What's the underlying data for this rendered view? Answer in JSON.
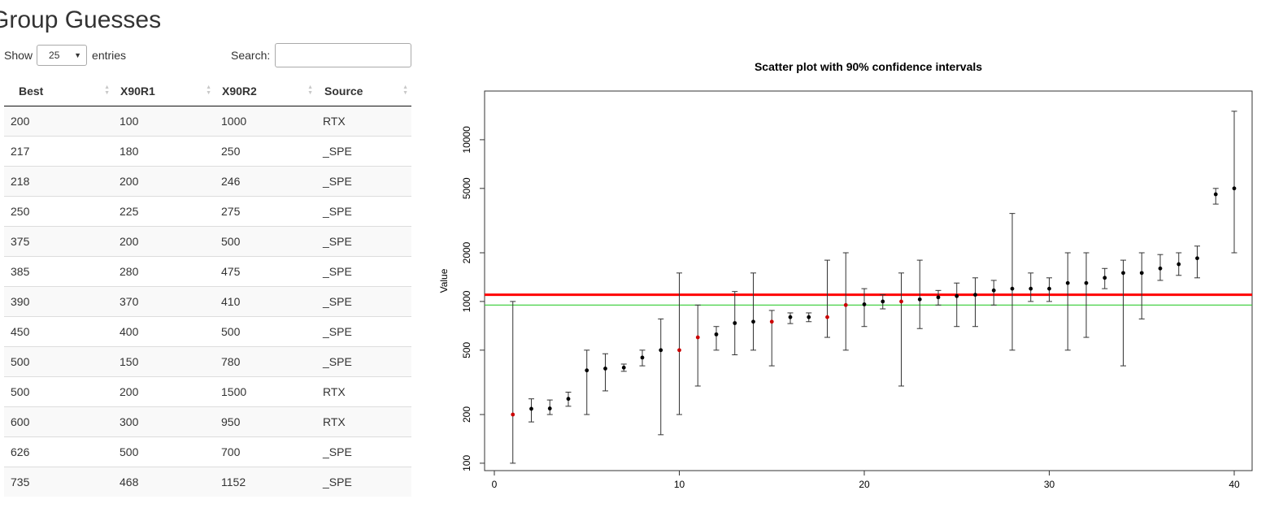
{
  "page": {
    "title": "Group Guesses"
  },
  "table_controls": {
    "show_label": "Show",
    "page_length": "25",
    "entries_label": "entries",
    "search_label": "Search:",
    "search_value": ""
  },
  "table": {
    "columns": [
      "Best",
      "X90R1",
      "X90R2",
      "Source"
    ],
    "rows": [
      [
        "200",
        "100",
        "1000",
        "RTX"
      ],
      [
        "217",
        "180",
        "250",
        "_SPE"
      ],
      [
        "218",
        "200",
        "246",
        "_SPE"
      ],
      [
        "250",
        "225",
        "275",
        "_SPE"
      ],
      [
        "375",
        "200",
        "500",
        "_SPE"
      ],
      [
        "385",
        "280",
        "475",
        "_SPE"
      ],
      [
        "390",
        "370",
        "410",
        "_SPE"
      ],
      [
        "450",
        "400",
        "500",
        "_SPE"
      ],
      [
        "500",
        "150",
        "780",
        "_SPE"
      ],
      [
        "500",
        "200",
        "1500",
        "RTX"
      ],
      [
        "600",
        "300",
        "950",
        "RTX"
      ],
      [
        "626",
        "500",
        "700",
        "_SPE"
      ],
      [
        "735",
        "468",
        "1152",
        "_SPE"
      ]
    ]
  },
  "chart_data": {
    "type": "scatter",
    "title": "Scatter plot with 90% confidence intervals",
    "xlabel": "",
    "ylabel": "Value",
    "y_scale": "log",
    "xlim": [
      0,
      40
    ],
    "ylim": [
      90,
      20000
    ],
    "x_ticks": [
      0,
      10,
      20,
      30,
      40
    ],
    "y_ticks": [
      100,
      200,
      500,
      1000,
      2000,
      5000,
      10000
    ],
    "grid": false,
    "colors": {
      "point_default": "#000000",
      "point_highlight": "#cc0000",
      "hline_red": "#ff0000",
      "hline_green": "#33cc33",
      "errorbar": "#333333"
    },
    "hlines": [
      {
        "y": 1100,
        "color": "red"
      },
      {
        "y": 950,
        "color": "green"
      }
    ],
    "points": [
      {
        "x": 1,
        "y": 200,
        "lo": 100,
        "hi": 1000,
        "highlight": true
      },
      {
        "x": 2,
        "y": 217,
        "lo": 180,
        "hi": 250,
        "highlight": false
      },
      {
        "x": 3,
        "y": 218,
        "lo": 200,
        "hi": 246,
        "highlight": false
      },
      {
        "x": 4,
        "y": 250,
        "lo": 225,
        "hi": 275,
        "highlight": false
      },
      {
        "x": 5,
        "y": 375,
        "lo": 200,
        "hi": 500,
        "highlight": false
      },
      {
        "x": 6,
        "y": 385,
        "lo": 280,
        "hi": 475,
        "highlight": false
      },
      {
        "x": 7,
        "y": 390,
        "lo": 370,
        "hi": 410,
        "highlight": false
      },
      {
        "x": 8,
        "y": 450,
        "lo": 400,
        "hi": 500,
        "highlight": false
      },
      {
        "x": 9,
        "y": 500,
        "lo": 150,
        "hi": 780,
        "highlight": false
      },
      {
        "x": 10,
        "y": 500,
        "lo": 200,
        "hi": 1500,
        "highlight": true
      },
      {
        "x": 11,
        "y": 600,
        "lo": 300,
        "hi": 950,
        "highlight": true
      },
      {
        "x": 12,
        "y": 626,
        "lo": 500,
        "hi": 700,
        "highlight": false
      },
      {
        "x": 13,
        "y": 735,
        "lo": 468,
        "hi": 1152,
        "highlight": false
      },
      {
        "x": 14,
        "y": 750,
        "lo": 500,
        "hi": 1500,
        "highlight": false
      },
      {
        "x": 15,
        "y": 750,
        "lo": 400,
        "hi": 880,
        "highlight": true
      },
      {
        "x": 16,
        "y": 800,
        "lo": 730,
        "hi": 850,
        "highlight": false
      },
      {
        "x": 17,
        "y": 800,
        "lo": 750,
        "hi": 850,
        "highlight": false
      },
      {
        "x": 18,
        "y": 800,
        "lo": 600,
        "hi": 1800,
        "highlight": true
      },
      {
        "x": 19,
        "y": 950,
        "lo": 500,
        "hi": 2000,
        "highlight": true
      },
      {
        "x": 20,
        "y": 960,
        "lo": 700,
        "hi": 1200,
        "highlight": false
      },
      {
        "x": 21,
        "y": 1000,
        "lo": 900,
        "hi": 1100,
        "highlight": false
      },
      {
        "x": 22,
        "y": 1000,
        "lo": 300,
        "hi": 1500,
        "highlight": true
      },
      {
        "x": 23,
        "y": 1030,
        "lo": 680,
        "hi": 1800,
        "highlight": false
      },
      {
        "x": 24,
        "y": 1060,
        "lo": 950,
        "hi": 1170,
        "highlight": false
      },
      {
        "x": 25,
        "y": 1080,
        "lo": 700,
        "hi": 1300,
        "highlight": false
      },
      {
        "x": 26,
        "y": 1100,
        "lo": 700,
        "hi": 1400,
        "highlight": false
      },
      {
        "x": 27,
        "y": 1170,
        "lo": 950,
        "hi": 1350,
        "highlight": false
      },
      {
        "x": 28,
        "y": 1200,
        "lo": 500,
        "hi": 3500,
        "highlight": false
      },
      {
        "x": 29,
        "y": 1200,
        "lo": 1000,
        "hi": 1500,
        "highlight": false
      },
      {
        "x": 30,
        "y": 1200,
        "lo": 1000,
        "hi": 1400,
        "highlight": false
      },
      {
        "x": 31,
        "y": 1300,
        "lo": 500,
        "hi": 2000,
        "highlight": false
      },
      {
        "x": 32,
        "y": 1300,
        "lo": 600,
        "hi": 2000,
        "highlight": false
      },
      {
        "x": 33,
        "y": 1400,
        "lo": 1200,
        "hi": 1600,
        "highlight": false
      },
      {
        "x": 34,
        "y": 1500,
        "lo": 400,
        "hi": 1800,
        "highlight": false
      },
      {
        "x": 35,
        "y": 1500,
        "lo": 780,
        "hi": 2000,
        "highlight": false
      },
      {
        "x": 36,
        "y": 1600,
        "lo": 1350,
        "hi": 1950,
        "highlight": false
      },
      {
        "x": 37,
        "y": 1700,
        "lo": 1450,
        "hi": 2000,
        "highlight": false
      },
      {
        "x": 38,
        "y": 1850,
        "lo": 1400,
        "hi": 2200,
        "highlight": false
      },
      {
        "x": 39,
        "y": 4600,
        "lo": 4000,
        "hi": 5000,
        "highlight": false
      },
      {
        "x": 40,
        "y": 5000,
        "lo": 2000,
        "hi": 15000,
        "highlight": false
      }
    ]
  }
}
